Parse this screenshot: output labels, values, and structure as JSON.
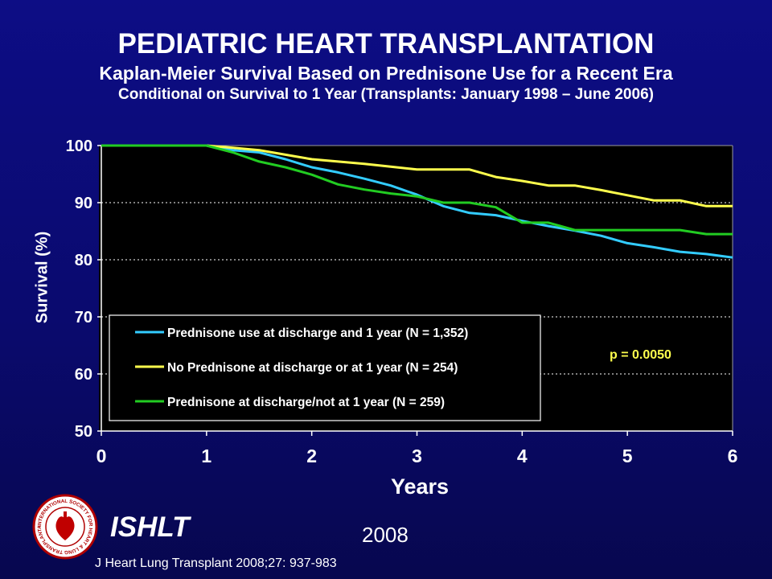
{
  "slide": {
    "title": "PEDIATRIC HEART TRANSPLANTATION",
    "subtitle1": "Kaplan-Meier Survival Based on Prednisone Use for a Recent Era",
    "subtitle2": "Conditional on Survival to 1 Year (Transplants: January 1998 – June 2006)",
    "annotation": "p = 0.0050",
    "org": "ISHLT",
    "year": "2008",
    "citation": "J Heart Lung Transplant 2008;27: 937-983",
    "logo_text": "INTERNATIONAL SOCIETY FOR HEART & LUNG TRANSPLANTATION"
  },
  "chart_data": {
    "type": "line",
    "title": "PEDIATRIC HEART TRANSPLANTATION",
    "xlabel": "Years",
    "ylabel": "Survival (%)",
    "xlim": [
      0,
      6
    ],
    "ylim": [
      50,
      100
    ],
    "xticks": [
      0,
      1,
      2,
      3,
      4,
      5,
      6
    ],
    "yticks": [
      50,
      60,
      70,
      80,
      90,
      100
    ],
    "grid": "horizontal dashed",
    "legend_position": "lower-left",
    "annotation": "p = 0.0050",
    "series": [
      {
        "name": "Prednisone use at discharge and 1 year (N = 1,352)",
        "color": "#33ccff",
        "x": [
          0,
          1,
          1.25,
          1.5,
          1.75,
          2,
          2.25,
          2.5,
          2.75,
          3,
          3.25,
          3.5,
          3.75,
          4,
          4.25,
          4.5,
          4.75,
          5,
          5.25,
          5.5,
          5.75,
          6
        ],
        "y": [
          100,
          100,
          99.2,
          98.8,
          97.6,
          96.2,
          95.3,
          94.2,
          93.0,
          91.4,
          89.4,
          88.2,
          87.8,
          86.8,
          85.9,
          85.1,
          84.2,
          82.9,
          82.2,
          81.4,
          81.0,
          80.4
        ]
      },
      {
        "name": "No Prednisone at discharge or at 1 year (N = 254)",
        "color": "#ffff4d",
        "x": [
          0,
          1,
          1.25,
          1.5,
          1.75,
          2,
          2.25,
          2.5,
          2.75,
          3,
          3.25,
          3.5,
          3.75,
          4,
          4.25,
          4.5,
          4.75,
          5,
          5.25,
          5.5,
          5.75,
          6
        ],
        "y": [
          100,
          100,
          99.6,
          99.2,
          98.4,
          97.6,
          97.2,
          96.8,
          96.3,
          95.8,
          95.8,
          95.8,
          94.5,
          93.8,
          93.0,
          93.0,
          92.2,
          91.3,
          90.4,
          90.4,
          89.4,
          89.4
        ]
      },
      {
        "name": "Prednisone at discharge/not at 1 year (N = 259)",
        "color": "#22cc22",
        "x": [
          0,
          1,
          1.25,
          1.5,
          1.75,
          2,
          2.25,
          2.5,
          2.75,
          3,
          3.25,
          3.5,
          3.75,
          4,
          4.25,
          4.5,
          4.75,
          5,
          5.25,
          5.5,
          5.75,
          6
        ],
        "y": [
          100,
          100,
          98.8,
          97.2,
          96.2,
          94.9,
          93.2,
          92.3,
          91.6,
          91.1,
          90.0,
          90.0,
          89.2,
          86.5,
          86.5,
          85.2,
          85.2,
          85.2,
          85.2,
          85.2,
          84.5,
          84.5
        ]
      }
    ]
  }
}
